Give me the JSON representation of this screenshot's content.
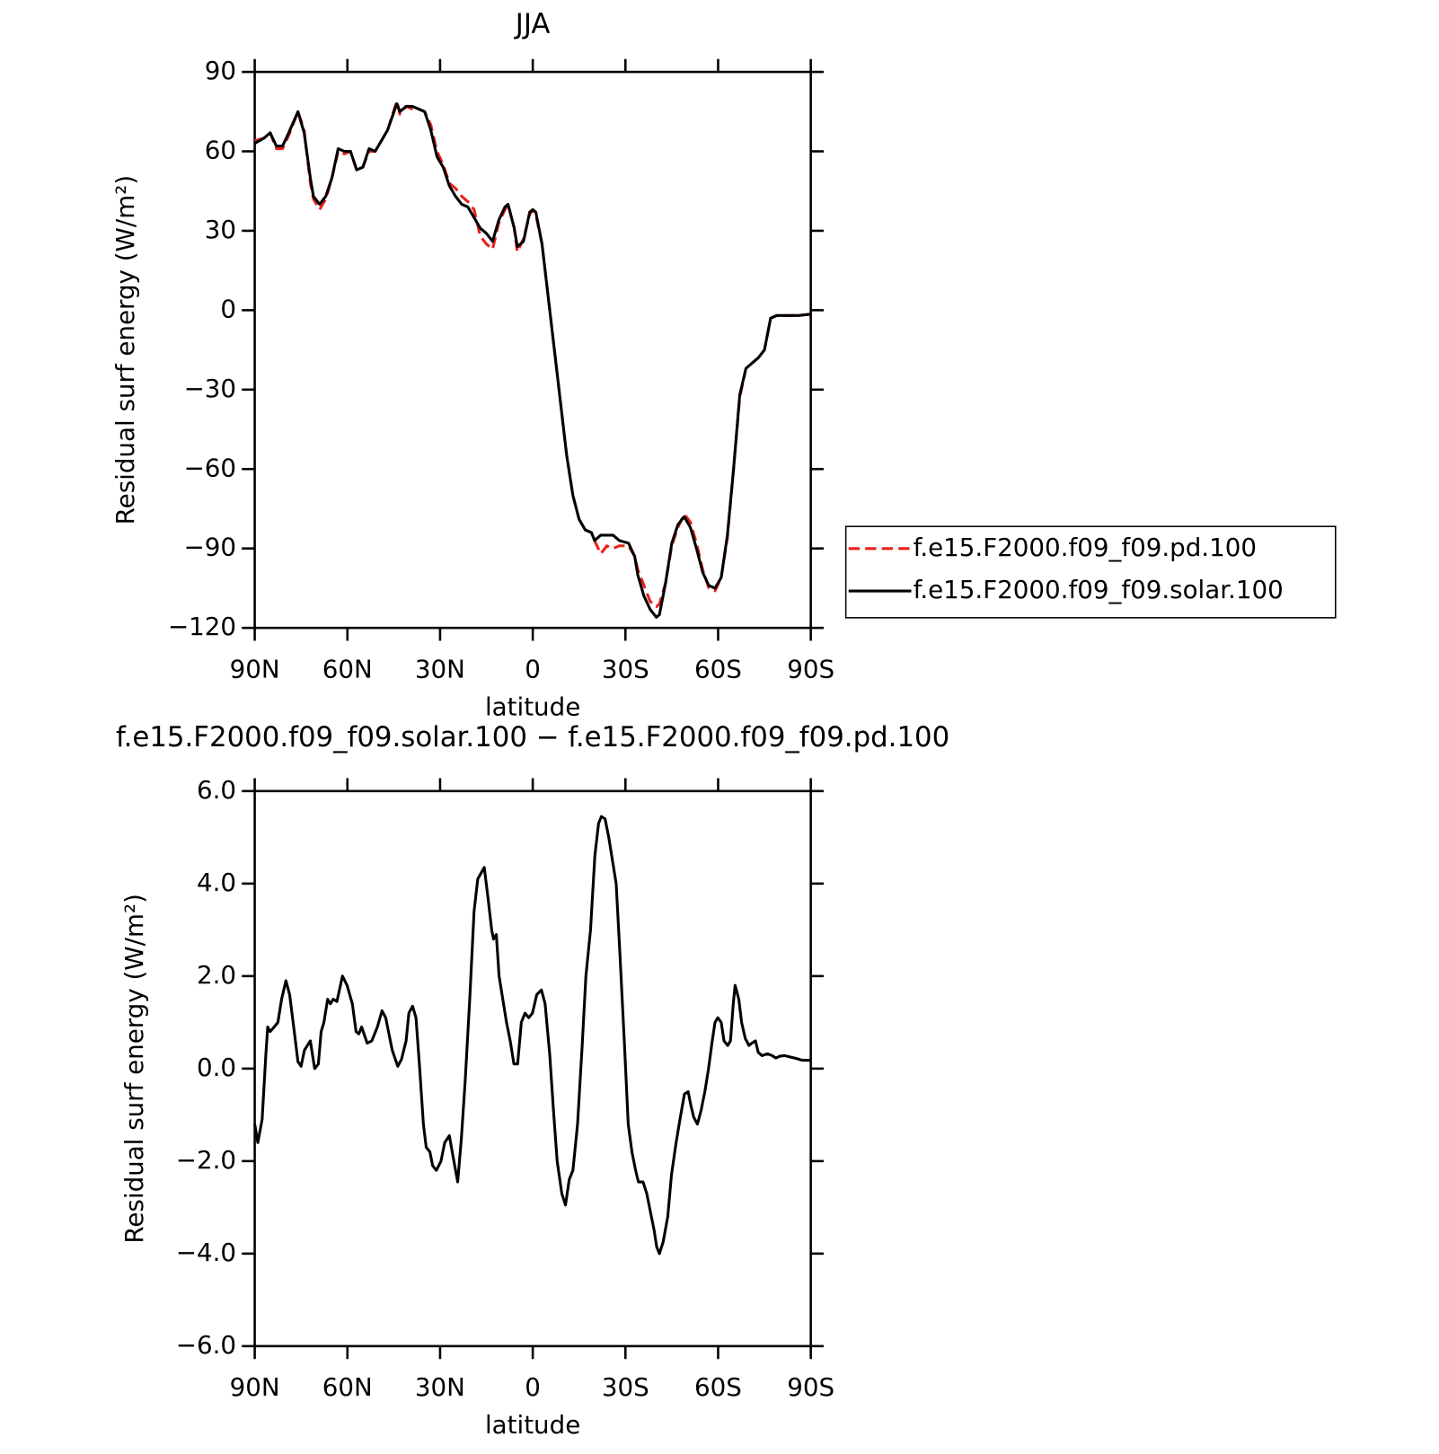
{
  "chart_data": [
    {
      "type": "line",
      "title": "JJA",
      "xlabel": "latitude",
      "ylabel": "Residual surf energy (W/m²)",
      "xlim": [
        90,
        -90
      ],
      "xticks": [
        {
          "value": 90,
          "label": "90N"
        },
        {
          "value": 60,
          "label": "60N"
        },
        {
          "value": 30,
          "label": "30N"
        },
        0,
        {
          "value": -30,
          "label": "30S"
        },
        {
          "value": -60,
          "label": "60S"
        },
        {
          "value": -90,
          "label": "90S"
        }
      ],
      "ylim": [
        -120,
        90
      ],
      "yticks": [
        {
          "value": 90,
          "label": "90"
        },
        {
          "value": 60,
          "label": "60"
        },
        {
          "value": 30,
          "label": "30"
        },
        0,
        {
          "value": -30,
          "label": "−30"
        },
        {
          "value": -60,
          "label": "−60"
        },
        {
          "value": -90,
          "label": "−90"
        },
        {
          "value": -120,
          "label": "−120"
        }
      ],
      "legend": "right",
      "x": [
        90,
        87,
        85,
        83,
        81,
        79,
        76,
        74,
        72,
        71,
        69,
        67,
        65,
        63,
        61,
        59,
        57,
        55,
        53,
        51,
        49,
        47,
        44,
        43,
        41,
        39,
        37,
        35,
        33,
        31,
        29,
        27,
        25,
        23,
        21,
        19,
        17,
        15,
        13,
        11,
        9,
        8,
        6,
        5,
        3,
        1,
        0,
        -1,
        -3,
        -5,
        -7,
        -9,
        -11,
        -13,
        -15,
        -17,
        -19,
        -20,
        -22,
        -24,
        -26,
        -28,
        -31,
        -33,
        -34,
        -36,
        -38,
        -40,
        -41,
        -43,
        -45,
        -47,
        -49,
        -51,
        -53,
        -55,
        -57,
        -59,
        -61,
        -63,
        -65,
        -67,
        -69,
        -71,
        -73,
        -75,
        -77,
        -79,
        -82,
        -86,
        -90
      ],
      "series": [
        {
          "name": "f.e15.F2000.f09_f09.pd.100",
          "color": "#e8201c",
          "dash": "dashed",
          "values": [
            64,
            65,
            67,
            61,
            61,
            66,
            75,
            68,
            48,
            42,
            38,
            42,
            50,
            60,
            59,
            60,
            53,
            54,
            60,
            60,
            64,
            68,
            79,
            74,
            77,
            76,
            76,
            75,
            70,
            60,
            55,
            48,
            46,
            43,
            41,
            38,
            28,
            25,
            23,
            33,
            38,
            40,
            31,
            22,
            27,
            36,
            38,
            36,
            25,
            5,
            -15,
            -35,
            -55,
            -70,
            -79,
            -83,
            -84,
            -87,
            -92,
            -89,
            -90,
            -89,
            -89,
            -93,
            -98,
            -104,
            -110,
            -112,
            -111,
            -103,
            -89,
            -82,
            -77,
            -80,
            -88,
            -98,
            -105,
            -106,
            -101,
            -86,
            -60,
            -33,
            -22,
            -20,
            -18,
            -15,
            -3,
            -2,
            -2,
            -2,
            -1.5
          ]
        },
        {
          "name": "f.e15.F2000.f09_f09.solar.100",
          "color": "#000000",
          "dash": "solid",
          "values": [
            63,
            65,
            67,
            62,
            62,
            67,
            75,
            67,
            50,
            43,
            40,
            43,
            50,
            61,
            60,
            60,
            53,
            54,
            61,
            60,
            64,
            68,
            78,
            75,
            77,
            77,
            76,
            75,
            68,
            58,
            54,
            47,
            43,
            40,
            39,
            35,
            31,
            29,
            26,
            34,
            39,
            40,
            31,
            24,
            26,
            37,
            38,
            37,
            25,
            5,
            -15,
            -35,
            -55,
            -70,
            -79,
            -83,
            -84,
            -87,
            -85,
            -85,
            -85,
            -87,
            -88,
            -93,
            -100,
            -108,
            -113,
            -116,
            -115,
            -103,
            -88,
            -81,
            -78,
            -82,
            -90,
            -99,
            -104,
            -105,
            -101,
            -85,
            -60,
            -32,
            -22,
            -20,
            -18,
            -15,
            -3,
            -2,
            -2,
            -2,
            -1.5
          ]
        }
      ]
    },
    {
      "type": "line",
      "title": "f.e15.F2000.f09_f09.solar.100 − f.e15.F2000.f09_f09.pd.100",
      "xlabel": "latitude",
      "ylabel": "Residual surf energy (W/m²)",
      "xlim": [
        90,
        -90
      ],
      "xticks": [
        {
          "value": 90,
          "label": "90N"
        },
        {
          "value": 60,
          "label": "60N"
        },
        {
          "value": 30,
          "label": "30N"
        },
        0,
        {
          "value": -30,
          "label": "30S"
        },
        {
          "value": -60,
          "label": "60S"
        },
        {
          "value": -90,
          "label": "90S"
        }
      ],
      "ylim": [
        -6,
        6
      ],
      "yticks": [
        {
          "value": 6,
          "label": "6.0"
        },
        {
          "value": 4,
          "label": "4.0"
        },
        {
          "value": 2,
          "label": "2.0"
        },
        {
          "value": 0,
          "label": "0.0"
        },
        {
          "value": -2,
          "label": "−2.0"
        },
        {
          "value": -4,
          "label": "−4.0"
        },
        {
          "value": -6,
          "label": "−6.0"
        }
      ],
      "x": [
        90,
        89,
        87.6,
        86.4,
        85.8,
        85,
        83.7,
        82.5,
        81.3,
        79.9,
        78.7,
        77.2,
        76,
        75,
        73.9,
        72,
        70.6,
        69.4,
        68.5,
        67.6,
        66.4,
        65.5,
        64.6,
        63.4,
        61.6,
        60.1,
        58.4,
        57.2,
        56.3,
        55.4,
        53.6,
        52.1,
        50.3,
        48.8,
        47.6,
        45.5,
        43.7,
        42.5,
        41,
        40.1,
        38.9,
        37.8,
        36.6,
        35.4,
        34.5,
        33.3,
        32.4,
        31.2,
        29.7,
        28.5,
        27,
        25.8,
        24.3,
        23.1,
        21.9,
        20.4,
        19,
        17.8,
        15.7,
        14.5,
        13.3,
        12.7,
        11.8,
        10.9,
        9.7,
        8.5,
        7.3,
        6.1,
        4.9,
        3.7,
        2.5,
        1.3,
        0.1,
        -1.3,
        -2.8,
        -4,
        -5.5,
        -6.7,
        -7.9,
        -9.4,
        -10.6,
        -11.8,
        -13,
        -14.5,
        -16,
        -17.2,
        -18.7,
        -20.1,
        -21.3,
        -22.2,
        -23.4,
        -24.6,
        -25.8,
        -27,
        -28.2,
        -29.7,
        -30.9,
        -32.1,
        -33.3,
        -34.2,
        -35.7,
        -36.9,
        -38.1,
        -39.3,
        -40.1,
        -41,
        -42.2,
        -43.7,
        -44.9,
        -46.4,
        -47.9,
        -49.1,
        -50.3,
        -51.2,
        -52.1,
        -53.3,
        -54.5,
        -55.7,
        -56.9,
        -58.1,
        -59,
        -59.9,
        -61,
        -61.9,
        -63.1,
        -64,
        -64.9,
        -65.5,
        -66.7,
        -67.6,
        -68.8,
        -70,
        -70.9,
        -72.1,
        -73,
        -74.2,
        -76,
        -77.5,
        -78.7,
        -80.1,
        -81.6,
        -83.4,
        -85.2,
        -87.3,
        -90
      ],
      "series": [
        {
          "color": "#000000",
          "dash": "solid",
          "values": [
            -1.2,
            -1.6,
            -1.1,
            0.3,
            0.9,
            0.8,
            0.9,
            1.0,
            1.5,
            1.9,
            1.6,
            0.8,
            0.15,
            0.05,
            0.4,
            0.6,
            0.0,
            0.1,
            0.8,
            1.0,
            1.5,
            1.4,
            1.5,
            1.45,
            2.0,
            1.8,
            1.4,
            0.8,
            0.75,
            0.9,
            0.55,
            0.6,
            0.9,
            1.25,
            1.1,
            0.4,
            0.05,
            0.2,
            0.6,
            1.2,
            1.35,
            1.1,
            0.0,
            -1.2,
            -1.7,
            -1.8,
            -2.1,
            -2.2,
            -2.0,
            -1.6,
            -1.45,
            -1.9,
            -2.45,
            -1.5,
            -0.3,
            1.5,
            3.4,
            4.1,
            4.35,
            3.7,
            3.0,
            2.8,
            2.9,
            2.0,
            1.5,
            1.0,
            0.6,
            0.1,
            0.1,
            1.0,
            1.2,
            1.1,
            1.2,
            1.6,
            1.7,
            1.4,
            0.3,
            -0.9,
            -2.0,
            -2.7,
            -2.95,
            -2.4,
            -2.2,
            -1.2,
            0.5,
            2.0,
            3.0,
            4.6,
            5.3,
            5.45,
            5.4,
            5.0,
            4.5,
            4.0,
            2.5,
            0.5,
            -1.2,
            -1.8,
            -2.2,
            -2.45,
            -2.45,
            -2.7,
            -3.1,
            -3.5,
            -3.85,
            -4.0,
            -3.75,
            -3.2,
            -2.3,
            -1.6,
            -1.0,
            -0.55,
            -0.5,
            -0.8,
            -1.05,
            -1.2,
            -0.9,
            -0.5,
            0.0,
            0.6,
            1.0,
            1.1,
            1.0,
            0.6,
            0.5,
            0.6,
            1.4,
            1.8,
            1.5,
            1.0,
            0.65,
            0.5,
            0.55,
            0.6,
            0.35,
            0.28,
            0.32,
            0.28,
            0.23,
            0.27,
            0.28,
            0.25,
            0.22,
            0.18,
            0.18
          ]
        }
      ]
    }
  ]
}
